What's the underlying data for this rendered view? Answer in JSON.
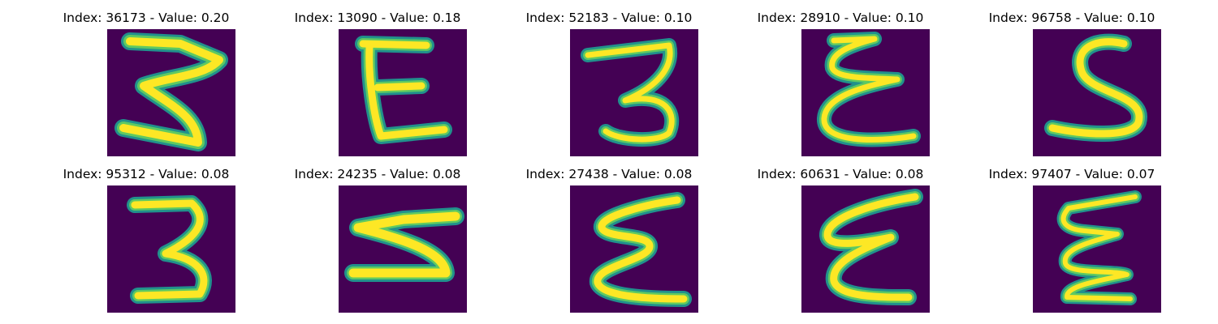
{
  "panels": [
    {
      "title": "Index: 36173 - Value: 0.20",
      "glyph": "three-open-icon"
    },
    {
      "title": "Index: 13090 - Value: 0.18",
      "glyph": "letter-e-icon"
    },
    {
      "title": "Index: 52183 - Value: 0.10",
      "glyph": "three-round-icon"
    },
    {
      "title": "Index: 28910 - Value: 0.10",
      "glyph": "epsilon-script-icon"
    },
    {
      "title": "Index: 96758 - Value: 0.10",
      "glyph": "letter-s-icon"
    },
    {
      "title": "Index: 95312 - Value: 0.08",
      "glyph": "three-narrow-icon"
    },
    {
      "title": "Index: 24235 - Value: 0.08",
      "glyph": "three-slanted-icon"
    },
    {
      "title": "Index: 27438 - Value: 0.08",
      "glyph": "epsilon-wide-icon"
    },
    {
      "title": "Index: 60631 - Value: 0.08",
      "glyph": "epsilon-loop-icon"
    },
    {
      "title": "Index: 97407 - Value: 0.07",
      "glyph": "epsilon-tall-icon"
    }
  ],
  "colors": {
    "background": "#440154",
    "stroke_core": "#fde725",
    "stroke_edge": "#5ec962",
    "stroke_halo": "#21918c"
  }
}
